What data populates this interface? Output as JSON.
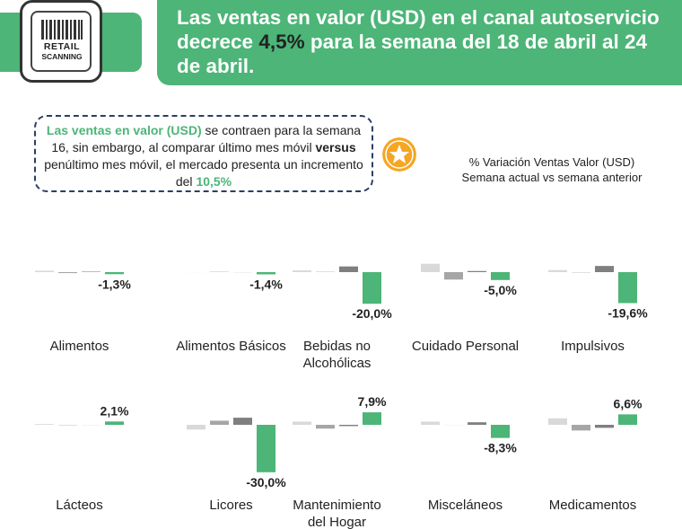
{
  "logo": {
    "line1": "RETAIL",
    "line2": "SCANNING",
    "icon": "barcode-icon"
  },
  "header": {
    "title_before": "Las ventas en valor (USD) en el canal autoservicio decrece ",
    "title_highlight": "4,5%",
    "title_after": " para la semana del 18 de abril al 24 de abril."
  },
  "callout": {
    "part1": "Las ventas en valor (USD)",
    "part2": " se contraen para la semana 16, sin embargo, al comparar último mes móvil ",
    "part3": "versus",
    "part4": " penúltimo mes móvil, el mercado presenta un incremento del ",
    "part5": "10,5%",
    "badge_icon": "star-icon"
  },
  "subtitle": {
    "line1": "% Variación Ventas Valor (USD)",
    "line2": "Semana actual vs semana anterior"
  },
  "colors": {
    "green": "#4cb577",
    "navy": "#2c3e66",
    "gray_light": "#d9d9d9",
    "gray_mid": "#a6a6a6",
    "gray_dark": "#7f7f7f",
    "gold": "#f5a623"
  },
  "chart_data": {
    "type": "bar",
    "note_bars": "Each category shows four bars; only the last (green) bar is labeled.",
    "categories": [
      {
        "label": [
          "Alimentos"
        ],
        "values": [
          0.9,
          -0.6,
          0.3,
          -1.3
        ],
        "label_text": "-1,3%"
      },
      {
        "label": [
          "Alimentos Básicos"
        ],
        "values": [
          0,
          0.2,
          0,
          -1.4
        ],
        "label_text": "-1,4%"
      },
      {
        "label": [
          "Bebidas no",
          "Alcohólicas"
        ],
        "values": [
          1.1,
          0.2,
          3.6,
          -20.0
        ],
        "label_text": "-20,0%"
      },
      {
        "label": [
          "Cuidado Personal"
        ],
        "values": [
          5.3,
          -4.7,
          0.7,
          -5.0
        ],
        "label_text": "-5,0%"
      },
      {
        "label": [
          "Impulsivos"
        ],
        "values": [
          1.3,
          -0.2,
          3.9,
          -19.6
        ],
        "label_text": "-19,6%"
      },
      {
        "label": [
          "Lácteos"
        ],
        "values": [
          0.5,
          -0.2,
          0,
          2.1
        ],
        "label_text": "2,1%"
      },
      {
        "label": [
          "Licores"
        ],
        "values": [
          -3.0,
          2.6,
          4.5,
          -30.0
        ],
        "label_text": "-30,0%"
      },
      {
        "label": [
          "Mantenimiento",
          "del Hogar"
        ],
        "values": [
          2.0,
          -2.4,
          -0.8,
          7.9
        ],
        "label_text": "7,9%"
      },
      {
        "label": [
          "Misceláneos"
        ],
        "values": [
          2.0,
          0,
          1.6,
          -8.3
        ],
        "label_text": "-8,3%"
      },
      {
        "label": [
          "Medicamentos"
        ],
        "values": [
          4.1,
          -3.6,
          -1.9,
          6.6
        ],
        "label_text": "6,6%"
      }
    ],
    "series_colors": [
      "#d9d9d9",
      "#a6a6a6",
      "#7f7f7f",
      "#4cb577"
    ]
  }
}
